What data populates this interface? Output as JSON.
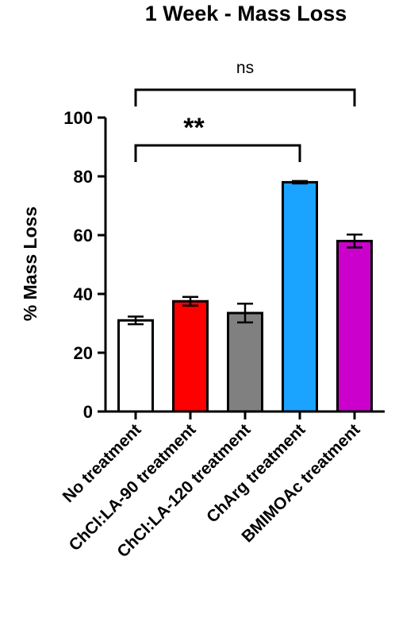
{
  "chart_data": {
    "type": "bar",
    "title": "1 Week - Mass Loss",
    "ylabel": "% Mass Loss",
    "xlabel": "",
    "ylim": [
      0,
      100
    ],
    "yticks": [
      "0",
      "20",
      "40",
      "60",
      "80",
      "100"
    ],
    "grid": false,
    "categories": [
      "No treatment",
      "ChCl:LA-90 treatment",
      "ChCl:LA-120 treatment",
      "ChArg treatment",
      "BMIMOAc treatment"
    ],
    "values": [
      31,
      37.5,
      33.5,
      78,
      58
    ],
    "errors": [
      1.3,
      1.5,
      3.2,
      0.4,
      2.2
    ],
    "colors": [
      "#ffffff",
      "#ff0000",
      "#808080",
      "#1aa3ff",
      "#cc00cc"
    ],
    "annotations": [
      {
        "label": "ns",
        "from_category": 0,
        "to_category": 4
      },
      {
        "label": "**",
        "from_category": 0,
        "to_category": 3
      }
    ]
  }
}
